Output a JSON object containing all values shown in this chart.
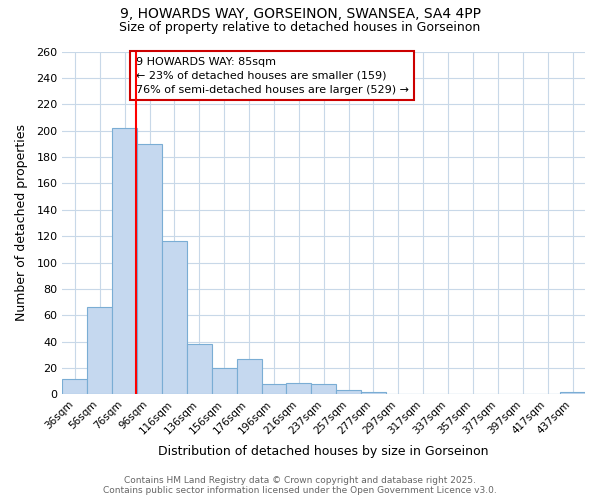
{
  "title_line1": "9, HOWARDS WAY, GORSEINON, SWANSEA, SA4 4PP",
  "title_line2": "Size of property relative to detached houses in Gorseinon",
  "xlabel": "Distribution of detached houses by size in Gorseinon",
  "ylabel": "Number of detached properties",
  "bar_labels": [
    "36sqm",
    "56sqm",
    "76sqm",
    "96sqm",
    "116sqm",
    "136sqm",
    "156sqm",
    "176sqm",
    "196sqm",
    "216sqm",
    "237sqm",
    "257sqm",
    "277sqm",
    "297sqm",
    "317sqm",
    "337sqm",
    "357sqm",
    "377sqm",
    "397sqm",
    "417sqm",
    "437sqm"
  ],
  "bar_values": [
    12,
    66,
    202,
    190,
    116,
    38,
    20,
    27,
    8,
    9,
    8,
    3,
    2,
    0,
    0,
    0,
    0,
    0,
    0,
    0,
    2
  ],
  "bar_color": "#c5d8ef",
  "bar_edge_color": "#7aadd4",
  "red_line_x": 2.45,
  "annotation_text": "9 HOWARDS WAY: 85sqm\n← 23% of detached houses are smaller (159)\n76% of semi-detached houses are larger (529) →",
  "annotation_box_color": "#ffffff",
  "annotation_box_edge": "#cc0000",
  "ylim": [
    0,
    260
  ],
  "yticks": [
    0,
    20,
    40,
    60,
    80,
    100,
    120,
    140,
    160,
    180,
    200,
    220,
    240,
    260
  ],
  "footer_line1": "Contains HM Land Registry data © Crown copyright and database right 2025.",
  "footer_line2": "Contains public sector information licensed under the Open Government Licence v3.0.",
  "background_color": "#ffffff",
  "grid_color": "#c8d8e8"
}
